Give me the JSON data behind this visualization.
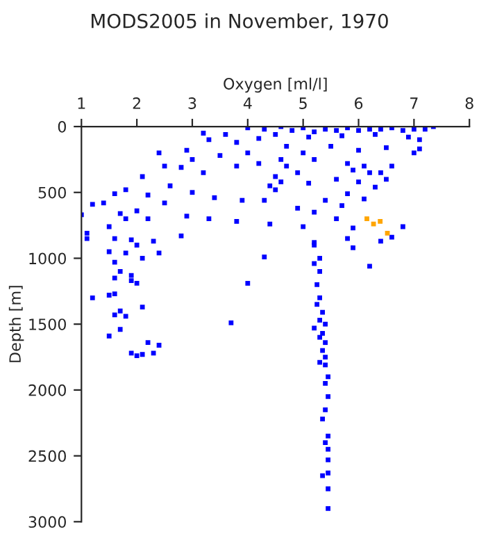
{
  "chart_data": {
    "type": "scatter",
    "title": "MODS2005 in November, 1970",
    "xlabel": "Oxygen [ml/l]",
    "ylabel": "Depth [m]",
    "xlim": [
      1,
      8
    ],
    "xticks": [
      1,
      2,
      3,
      4,
      5,
      6,
      7,
      8
    ],
    "ylim": [
      3000,
      0
    ],
    "yticks": [
      0,
      500,
      1000,
      1500,
      2000,
      2500,
      3000
    ],
    "grid": false,
    "legend": false,
    "marker": "square",
    "series": [
      {
        "color": "#0000ff",
        "x": [
          4.0,
          4.3,
          4.6,
          4.8,
          5.0,
          5.2,
          5.4,
          5.6,
          5.8,
          6.0,
          6.2,
          6.4,
          6.6,
          6.8,
          7.0,
          7.2,
          7.35,
          4.5,
          5.1,
          5.7,
          6.3,
          6.9,
          7.1,
          3.2,
          3.3,
          3.6,
          3.8,
          4.2,
          4.7,
          5.0,
          5.5,
          6.0,
          6.5,
          7.1,
          7.0,
          4.6,
          4.7,
          5.2,
          5.8,
          6.1,
          6.2,
          5.9,
          4.9,
          4.5,
          4.0,
          3.5,
          2.9,
          2.8,
          2.4,
          2.5,
          3.0,
          3.2,
          3.8,
          4.2,
          4.4,
          4.5,
          4.6,
          5.1,
          5.6,
          6.0,
          6.4,
          6.6,
          6.5,
          6.3,
          5.8,
          6.1,
          5.4,
          5.7,
          4.9,
          5.2,
          4.3,
          3.9,
          3.4,
          3.0,
          2.6,
          2.1,
          1.8,
          1.6,
          1.4,
          1.2,
          1.0,
          2.2,
          2.5,
          2.0,
          1.7,
          1.8,
          1.5,
          2.2,
          2.9,
          3.3,
          3.8,
          4.4,
          5.0,
          5.6,
          5.9,
          5.8,
          6.6,
          6.8,
          1.1,
          1.1,
          1.6,
          1.9,
          2.3,
          2.8,
          2.0,
          1.5,
          1.8,
          2.4,
          2.1,
          1.6,
          1.7,
          1.9,
          1.6,
          1.5,
          1.6,
          1.2,
          1.9,
          2.0,
          2.1,
          1.6,
          1.7,
          1.8,
          1.5,
          1.7,
          1.9,
          2.0,
          2.1,
          2.2,
          2.4,
          2.3,
          3.7,
          4.0,
          4.3,
          6.2,
          6.4,
          5.9,
          5.2,
          5.2,
          5.3,
          5.2,
          5.3,
          5.25,
          5.3,
          5.25,
          5.35,
          5.3,
          5.4,
          5.2,
          5.35,
          5.3,
          5.4,
          5.35,
          5.4,
          5.3,
          5.4,
          5.45,
          5.4,
          5.45,
          5.4,
          5.35,
          5.45,
          5.4,
          5.45,
          5.45,
          5.35,
          5.45,
          5.45,
          5.45
        ],
        "values": [
          10,
          20,
          0,
          30,
          10,
          40,
          20,
          30,
          10,
          30,
          20,
          20,
          10,
          30,
          20,
          20,
          0,
          60,
          80,
          70,
          60,
          80,
          100,
          50,
          100,
          60,
          120,
          90,
          150,
          200,
          150,
          180,
          160,
          170,
          200,
          250,
          300,
          250,
          280,
          300,
          350,
          330,
          350,
          380,
          200,
          220,
          180,
          310,
          200,
          300,
          250,
          350,
          300,
          280,
          450,
          480,
          420,
          430,
          400,
          420,
          350,
          300,
          400,
          460,
          510,
          550,
          560,
          600,
          620,
          650,
          560,
          560,
          540,
          500,
          450,
          380,
          480,
          510,
          580,
          590,
          670,
          520,
          580,
          640,
          660,
          700,
          760,
          700,
          680,
          700,
          720,
          740,
          760,
          700,
          770,
          850,
          840,
          760,
          810,
          850,
          850,
          860,
          870,
          830,
          900,
          950,
          960,
          960,
          1000,
          1030,
          1100,
          1130,
          1150,
          1280,
          1270,
          1300,
          1170,
          1190,
          1370,
          1430,
          1400,
          1440,
          1590,
          1540,
          1720,
          1740,
          1730,
          1640,
          1660,
          1720,
          1490,
          1190,
          990,
          1060,
          870,
          920,
          880,
          900,
          1000,
          1040,
          1100,
          1200,
          1300,
          1350,
          1410,
          1470,
          1500,
          1530,
          1570,
          1600,
          1640,
          1700,
          1750,
          1790,
          1810,
          1900,
          1950,
          2050,
          2150,
          2220,
          2350,
          2400,
          2450,
          2530,
          2650,
          2630,
          2750,
          2900
        ]
      },
      {
        "color": "#ffa500",
        "x": [
          6.15,
          6.27,
          6.39,
          6.52
        ],
        "values": [
          700,
          740,
          720,
          810
        ]
      }
    ]
  }
}
